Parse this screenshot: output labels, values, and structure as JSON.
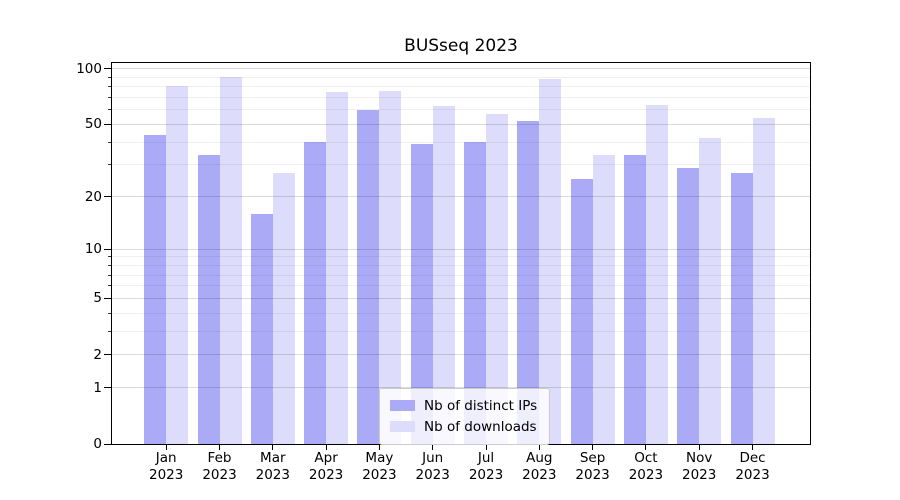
{
  "chart_data": {
    "type": "bar",
    "title": "BUSseq 2023",
    "categories": [
      "Jan",
      "Feb",
      "Mar",
      "Apr",
      "May",
      "Jun",
      "Jul",
      "Aug",
      "Sep",
      "Oct",
      "Nov",
      "Dec"
    ],
    "category_year": "2023",
    "series": [
      {
        "name": "Nb of distinct IPs",
        "color": "#aaaaf6",
        "values": [
          44,
          34,
          16,
          40,
          60,
          39,
          40,
          52,
          25,
          34,
          29,
          27
        ]
      },
      {
        "name": "Nb of downloads",
        "color": "#ddddfb",
        "values": [
          81,
          90,
          27,
          75,
          76,
          63,
          57,
          88,
          34,
          64,
          42,
          54
        ]
      }
    ],
    "y_axis": {
      "scale": "log10(1+y)",
      "ticks": [
        0,
        1,
        2,
        5,
        10,
        20,
        50,
        100
      ],
      "tick_labels": [
        "0",
        "1",
        "2",
        "5",
        "10",
        "20",
        "50",
        "100"
      ],
      "minor_ticks": [
        3,
        4,
        6,
        7,
        8,
        9,
        30,
        40,
        60,
        70,
        80,
        90
      ],
      "ymax": 107.7,
      "grid": true
    },
    "legend": {
      "location": "lower center",
      "entries": [
        "Nb of distinct IPs",
        "Nb of downloads"
      ]
    }
  }
}
